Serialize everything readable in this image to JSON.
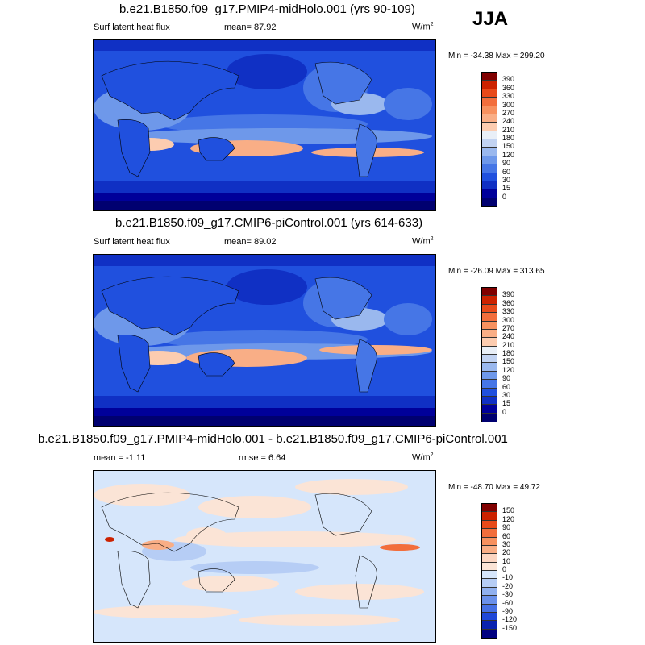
{
  "season": "JJA",
  "panels": [
    {
      "id": "midholo",
      "title": "b.e21.B1850.f09_g17.PMIP4-midHolo.001 (yrs 90-109)",
      "left_label": "Surf latent heat flux",
      "mid_label": "mean=  87.92",
      "units": "W/m",
      "units_sup": "2",
      "minmax": "Min = -34.38 Max = 299.20",
      "colorbar_labels": [
        "390",
        "360",
        "330",
        "300",
        "270",
        "240",
        "210",
        "180",
        "150",
        "120",
        "90",
        "60",
        "30",
        "15",
        "0"
      ],
      "colorbar_colors": [
        "#800000",
        "#cc2200",
        "#e84a1a",
        "#f26e3c",
        "#f7915f",
        "#f9ae86",
        "#fcccb0",
        "#e9eff7",
        "#c2d3f2",
        "#9ab8ee",
        "#6e98ea",
        "#4676e6",
        "#2050de",
        "#1030c4",
        "#00009a",
        "#000070"
      ]
    },
    {
      "id": "picontrol",
      "title": "b.e21.B1850.f09_g17.CMIP6-piControl.001 (yrs 614-633)",
      "left_label": "Surf latent heat flux",
      "mid_label": "mean=  89.02",
      "units": "W/m",
      "units_sup": "2",
      "minmax": "Min = -26.09 Max = 313.65",
      "colorbar_labels": [
        "390",
        "360",
        "330",
        "300",
        "270",
        "240",
        "210",
        "180",
        "150",
        "120",
        "90",
        "60",
        "30",
        "15",
        "0"
      ],
      "colorbar_colors": [
        "#800000",
        "#cc2200",
        "#e84a1a",
        "#f26e3c",
        "#f7915f",
        "#f9ae86",
        "#fcccb0",
        "#e9eff7",
        "#c2d3f2",
        "#9ab8ee",
        "#6e98ea",
        "#4676e6",
        "#2050de",
        "#1030c4",
        "#00009a",
        "#000070"
      ]
    },
    {
      "id": "diff",
      "title": "b.e21.B1850.f09_g17.PMIP4-midHolo.001 - b.e21.B1850.f09_g17.CMIP6-piControl.001",
      "left_label": "mean =  -1.11",
      "mid_label": "rmse =   6.64",
      "units": "W/m",
      "units_sup": "2",
      "minmax": "Min = -48.70 Max =  49.72",
      "colorbar_labels": [
        "150",
        "120",
        "90",
        "60",
        "30",
        "20",
        "10",
        "0",
        "-10",
        "-20",
        "-30",
        "-60",
        "-90",
        "-120",
        "-150"
      ],
      "colorbar_colors": [
        "#800000",
        "#cc2200",
        "#e84a1a",
        "#f26e3c",
        "#f7915f",
        "#f9ae86",
        "#fcd6c2",
        "#fbe4d6",
        "#d6e6fb",
        "#b6cdf5",
        "#90b0ef",
        "#6a90ea",
        "#4670e4",
        "#2048d8",
        "#0a22b0",
        "#000080"
      ]
    }
  ]
}
